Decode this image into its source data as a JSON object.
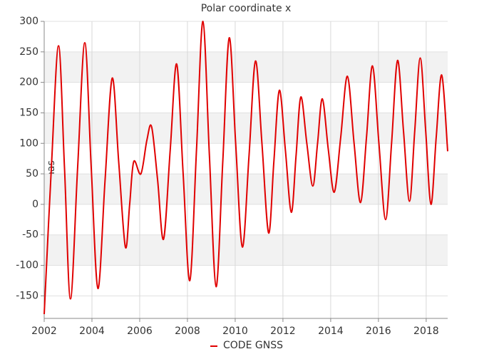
{
  "chart_data": {
    "type": "line",
    "title": "Polar coordinate x",
    "y_label": "mas",
    "xlim": [
      2002,
      2018.9
    ],
    "xticks": [
      2002,
      2004,
      2006,
      2008,
      2010,
      2012,
      2014,
      2016,
      2018
    ],
    "ylim": [
      -187,
      300
    ],
    "yticks": [
      -150,
      -100,
      -50,
      0,
      50,
      100,
      150,
      200,
      250,
      300
    ],
    "grid": true,
    "alternating_bands": true,
    "legend": "bottom",
    "series": [
      {
        "name": "CODE GNSS",
        "color": "#e00000",
        "x": [
          2002.0,
          2002.3,
          2002.6,
          2002.85,
          2003.1,
          2003.4,
          2003.7,
          2003.97,
          2004.25,
          2004.55,
          2004.85,
          2005.12,
          2005.4,
          2005.58,
          2005.75,
          2006.05,
          2006.3,
          2006.5,
          2006.75,
          2007.0,
          2007.28,
          2007.55,
          2007.82,
          2008.1,
          2008.38,
          2008.65,
          2008.92,
          2009.2,
          2009.48,
          2009.75,
          2010.02,
          2010.3,
          2010.58,
          2010.85,
          2011.12,
          2011.4,
          2011.62,
          2011.85,
          2012.1,
          2012.35,
          2012.55,
          2012.75,
          2013.0,
          2013.25,
          2013.45,
          2013.65,
          2013.9,
          2014.15,
          2014.42,
          2014.7,
          2014.98,
          2015.25,
          2015.5,
          2015.75,
          2016.02,
          2016.3,
          2016.55,
          2016.8,
          2017.05,
          2017.3,
          2017.52,
          2017.75,
          2017.98,
          2018.2,
          2018.42,
          2018.65,
          2018.9
        ],
        "values": [
          -180,
          60,
          260,
          60,
          -155,
          60,
          265,
          60,
          -138,
          40,
          207,
          70,
          -70,
          0,
          70,
          50,
          105,
          127,
          40,
          -57,
          90,
          230,
          50,
          -125,
          90,
          300,
          80,
          -135,
          70,
          273,
          100,
          -70,
          80,
          235,
          100,
          -47,
          70,
          187,
          90,
          -13,
          80,
          176,
          100,
          30,
          100,
          173,
          90,
          20,
          110,
          210,
          100,
          3,
          110,
          227,
          100,
          -25,
          100,
          236,
          120,
          5,
          120,
          240,
          120,
          0,
          110,
          212,
          87
        ]
      }
    ]
  }
}
